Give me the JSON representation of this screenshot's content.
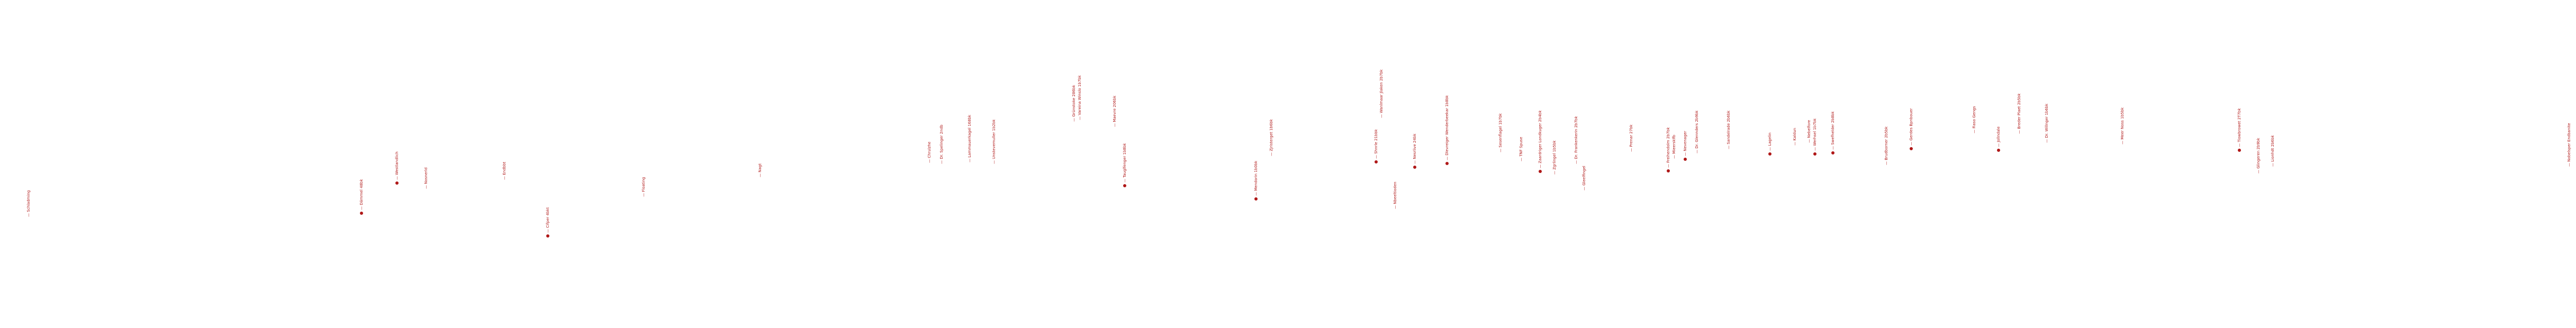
{
  "accent_color": "#b01818",
  "events": [
    {
      "label": "— Schladming",
      "dot": false
    },
    {
      "label": "— Dämmel 48bk",
      "dot": true
    },
    {
      "label": "— Westlandlich",
      "dot": true
    },
    {
      "label": "— Nosnerld",
      "dot": false
    },
    {
      "label": "— Endbbt",
      "dot": false
    },
    {
      "label": "— Cifper 4bkt",
      "dot": true
    },
    {
      "label": "— Floating",
      "dot": false
    },
    {
      "label": "— Nagt",
      "dot": false
    },
    {
      "label": "— Chrulzhe",
      "dot": false
    },
    {
      "label": "— Dr. Spelinger 2ndb",
      "dot": false
    },
    {
      "label": "— Lammauerkagel 168bk",
      "dot": false
    },
    {
      "label": "— Unstevemuller 1b2bk",
      "dot": false
    },
    {
      "label": "— Grünstoke 286bk",
      "dot": false
    },
    {
      "label": "— Vareina Winslo 1b7bk",
      "dot": false
    },
    {
      "label": "— Maevre 206bk",
      "dot": false
    },
    {
      "label": "— Tauglfenger 1b8bk",
      "dot": true
    },
    {
      "label": "— Mendorin 1b0bk",
      "dot": true
    },
    {
      "label": "— Zjristerget 1b6bk",
      "dot": false
    },
    {
      "label": "— Shnrle 21bbk",
      "dot": true
    },
    {
      "label": "— Wanlmaar Jlaken 2b7bk",
      "dot": false
    },
    {
      "label": "— Nbeeltioden",
      "dot": false
    },
    {
      "label": "— Nesrlive 24bk",
      "dot": true
    },
    {
      "label": "— Dlevreiger Wenderbeekar 1b8bk",
      "dot": true
    },
    {
      "label": "— Sesenflagel 1b7bk",
      "dot": false
    },
    {
      "label": "— TNF Spuse",
      "dot": false
    },
    {
      "label": "— Zaardriger Londkuger 2b4bk",
      "dot": true
    },
    {
      "label": "— Zgrlingel 1b5bk",
      "dot": false
    },
    {
      "label": "— Dr. Frankenkerin 2b7bk",
      "dot": false
    },
    {
      "label": "— Gleelfingel",
      "dot": false
    },
    {
      "label": "— Prenar 27bk",
      "dot": false
    },
    {
      "label": "— Freihendolm 2b7bk",
      "dot": true
    },
    {
      "label": "— Mieersklfb",
      "dot": false
    },
    {
      "label": "— Nevenager",
      "dot": true
    },
    {
      "label": "— Dr. Glennders 2b9bk",
      "dot": false
    },
    {
      "label": "— Sandelrade 2b6bk",
      "dot": false
    },
    {
      "label": "— Lagelin",
      "dot": true
    },
    {
      "label": "— Kaldun",
      "dot": false
    },
    {
      "label": "— Nebelfore",
      "dot": false
    },
    {
      "label": "— Werhsel 1b7bk",
      "dot": true
    },
    {
      "label": "— Swefhelder 2b8bk",
      "dot": true
    },
    {
      "label": "— Brudborner 2b5bk",
      "dot": false
    },
    {
      "label": "— Gerdes Bpnbouer",
      "dot": true
    },
    {
      "label": "— Fiaso Gengs",
      "dot": false
    },
    {
      "label": "— Jollndale",
      "dot": true
    },
    {
      "label": "— Breder Plaet 2b5bk",
      "dot": false
    },
    {
      "label": "— Dr. Willnger 1b6bk",
      "dot": false
    },
    {
      "label": "— Meer Noss 1b5bk",
      "dot": false
    },
    {
      "label": "— Tiowbrowet 2T7bk",
      "dot": true
    },
    {
      "label": "— Glingeren 2b9bk",
      "dot": false
    },
    {
      "label": "— Lionhdt 2b6bk",
      "dot": false
    },
    {
      "label": "— Nobelsper Endbanite",
      "dot": false
    }
  ]
}
